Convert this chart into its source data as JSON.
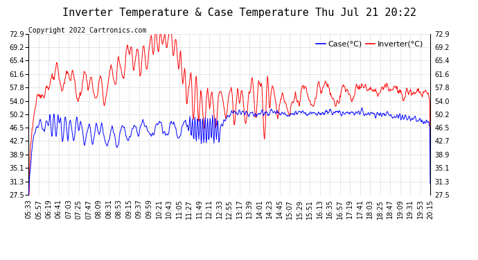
{
  "title": "Inverter Temperature & Case Temperature Thu Jul 21 20:22",
  "copyright": "Copyright 2022 Cartronics.com",
  "legend_case": "Case(°C)",
  "legend_inverter": "Inverter(°C)",
  "yticks": [
    27.5,
    31.3,
    35.1,
    38.9,
    42.7,
    46.5,
    50.2,
    54.0,
    57.8,
    61.6,
    65.4,
    69.2,
    72.9
  ],
  "ylim": [
    27.5,
    72.9
  ],
  "background_color": "#ffffff",
  "grid_color": "#aaaaaa",
  "case_color": "blue",
  "inverter_color": "red",
  "title_fontsize": 11,
  "copyright_fontsize": 7,
  "tick_fontsize": 7,
  "legend_fontsize": 8
}
